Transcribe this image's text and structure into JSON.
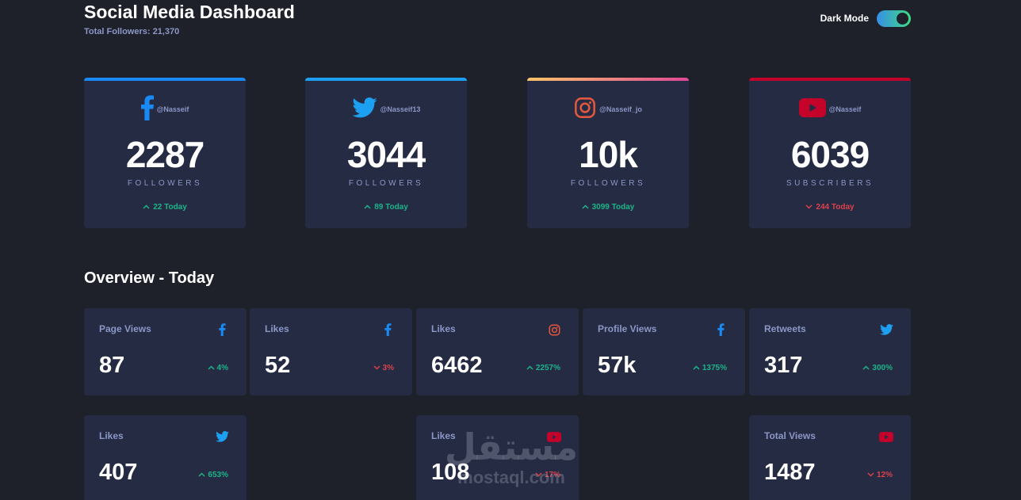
{
  "header": {
    "title": "Social Media Dashboard",
    "total_followers": "Total Followers: 21,370",
    "dark_mode_label": "Dark Mode"
  },
  "colors": {
    "facebook": "#198af4",
    "twitter": "#1da0f2",
    "instagram": "#e1583f",
    "youtube": "#c4032a",
    "up": "#1db489",
    "down": "#dc414c"
  },
  "cards": [
    {
      "platform": "facebook",
      "icon": "facebook-icon",
      "handle": "@Nasseif",
      "count": "2287",
      "label": "FOLLOWERS",
      "today": "22 Today",
      "trend": "up"
    },
    {
      "platform": "twitter",
      "icon": "twitter-icon",
      "handle": "@Nasseif13",
      "count": "3044",
      "label": "FOLLOWERS",
      "today": "89 Today",
      "trend": "up"
    },
    {
      "platform": "instagram",
      "icon": "instagram-icon",
      "handle": "@Nasseif_jo",
      "count": "10k",
      "label": "FOLLOWERS",
      "today": "3099 Today",
      "trend": "up"
    },
    {
      "platform": "youtube",
      "icon": "youtube-icon",
      "handle": "@Nasseif",
      "count": "6039",
      "label": "SUBSCRIBERS",
      "today": "244 Today",
      "trend": "down"
    }
  ],
  "overview": {
    "title": "Overview - Today",
    "tiles": [
      {
        "label": "Page Views",
        "icon": "facebook-icon",
        "value": "87",
        "percent": "4%",
        "trend": "up"
      },
      {
        "label": "Likes",
        "icon": "facebook-icon",
        "value": "52",
        "percent": "3%",
        "trend": "down"
      },
      {
        "label": "Likes",
        "icon": "instagram-icon",
        "value": "6462",
        "percent": "2257%",
        "trend": "up"
      },
      {
        "label": "Profile Views",
        "icon": "facebook-icon",
        "value": "57k",
        "percent": "1375%",
        "trend": "up"
      },
      {
        "label": "Retweets",
        "icon": "twitter-icon",
        "value": "317",
        "percent": "300%",
        "trend": "up"
      },
      {
        "label": "Likes",
        "icon": "twitter-icon",
        "value": "407",
        "percent": "653%",
        "trend": "up"
      },
      {
        "label": "Likes",
        "icon": "youtube-icon",
        "value": "108",
        "percent": "17%",
        "trend": "down"
      },
      {
        "label": "Total Views",
        "icon": "youtube-icon",
        "value": "1487",
        "percent": "12%",
        "trend": "down"
      }
    ]
  },
  "watermark": {
    "arabic": "مستقل",
    "latin": "mostaql.com"
  }
}
